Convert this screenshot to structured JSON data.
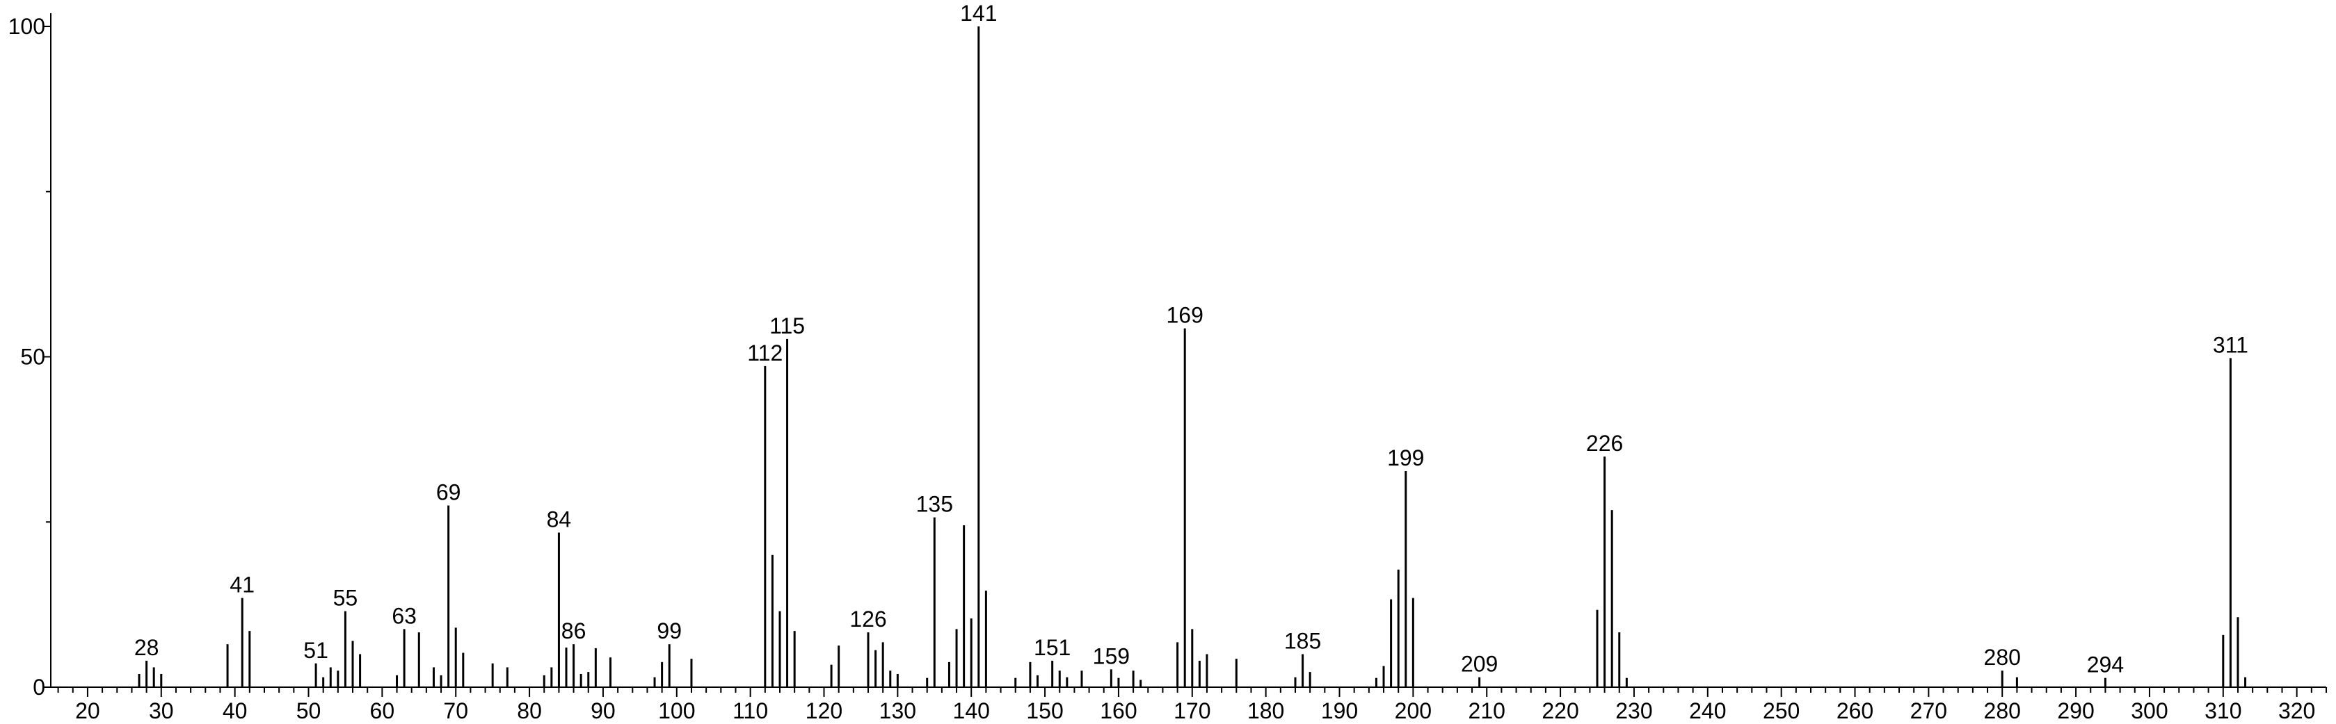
{
  "chart_data": {
    "type": "stem",
    "x": [
      27,
      28,
      29,
      30,
      39,
      41,
      42,
      51,
      52,
      53,
      54,
      55,
      56,
      57,
      62,
      63,
      65,
      67,
      68,
      69,
      70,
      71,
      75,
      77,
      82,
      83,
      84,
      85,
      86,
      87,
      88,
      89,
      91,
      97,
      98,
      99,
      102,
      112,
      113,
      114,
      115,
      116,
      121,
      122,
      126,
      127,
      128,
      129,
      130,
      134,
      135,
      137,
      138,
      139,
      140,
      141,
      142,
      146,
      148,
      149,
      151,
      152,
      153,
      155,
      159,
      160,
      162,
      163,
      168,
      169,
      170,
      171,
      172,
      176,
      184,
      185,
      186,
      195,
      196,
      197,
      198,
      199,
      200,
      209,
      225,
      226,
      227,
      228,
      229,
      280,
      282,
      294,
      310,
      311,
      312,
      313
    ],
    "values": [
      2,
      4,
      3,
      2,
      6.5,
      13.5,
      8.5,
      3.6,
      1.5,
      3,
      2.5,
      11.5,
      7,
      5,
      1.8,
      8.8,
      8.3,
      3,
      1.8,
      27.5,
      9,
      5.2,
      3.6,
      3,
      1.8,
      3,
      23.4,
      6,
      6.5,
      2,
      2.3,
      5.9,
      4.5,
      1.5,
      3.8,
      6.5,
      4.3,
      48.6,
      20,
      11.5,
      52.7,
      8.5,
      3.4,
      6.3,
      8.3,
      5.6,
      6.8,
      2.5,
      2,
      1.4,
      25.7,
      3.8,
      8.8,
      24.5,
      10.4,
      100,
      14.6,
      1.4,
      3.8,
      1.8,
      4,
      2.5,
      1.5,
      2.5,
      2.7,
      1.4,
      2.5,
      1.1,
      6.8,
      54.3,
      8.8,
      4,
      5,
      4.3,
      1.5,
      5,
      2.3,
      1.4,
      3.2,
      13.3,
      17.8,
      32.7,
      13.5,
      1.5,
      11.7,
      34.9,
      26.8,
      8.3,
      1.4,
      2.5,
      1.5,
      1.4,
      7.9,
      49.8,
      10.6,
      1.5
    ],
    "color": "#000000",
    "annotations": [
      28,
      41,
      51,
      55,
      63,
      69,
      84,
      86,
      99,
      112,
      115,
      126,
      135,
      141,
      151,
      159,
      169,
      185,
      199,
      209,
      226,
      280,
      294,
      311
    ],
    "xlim": [
      15,
      324
    ],
    "xticks": [
      20,
      30,
      40,
      50,
      60,
      70,
      80,
      90,
      100,
      110,
      120,
      130,
      140,
      150,
      160,
      170,
      180,
      190,
      200,
      210,
      220,
      230,
      240,
      250,
      260,
      270,
      280,
      290,
      300,
      310,
      320
    ],
    "xminorticks": [
      16,
      18,
      22,
      24,
      26,
      28,
      32,
      34,
      36,
      38,
      42,
      44,
      46,
      48,
      52,
      54,
      56,
      58,
      62,
      64,
      66,
      68,
      72,
      74,
      76,
      78,
      82,
      84,
      86,
      88,
      92,
      94,
      96,
      98,
      102,
      104,
      106,
      108,
      112,
      114,
      116,
      118,
      122,
      124,
      126,
      128,
      132,
      134,
      136,
      138,
      142,
      144,
      146,
      148,
      152,
      154,
      156,
      158,
      162,
      164,
      166,
      168,
      172,
      174,
      176,
      178,
      182,
      184,
      186,
      188,
      192,
      194,
      196,
      198,
      202,
      204,
      206,
      208,
      212,
      214,
      216,
      218,
      222,
      224,
      226,
      228,
      232,
      234,
      236,
      238,
      242,
      244,
      246,
      248,
      252,
      254,
      256,
      258,
      262,
      264,
      266,
      268,
      272,
      274,
      276,
      278,
      282,
      284,
      286,
      288,
      292,
      294,
      296,
      298,
      302,
      304,
      306,
      308,
      312,
      314,
      316,
      318,
      322,
      324
    ],
    "ylim": [
      0,
      102
    ],
    "yticks": [
      0,
      50,
      100
    ],
    "yminorticks": [
      25,
      75
    ]
  }
}
